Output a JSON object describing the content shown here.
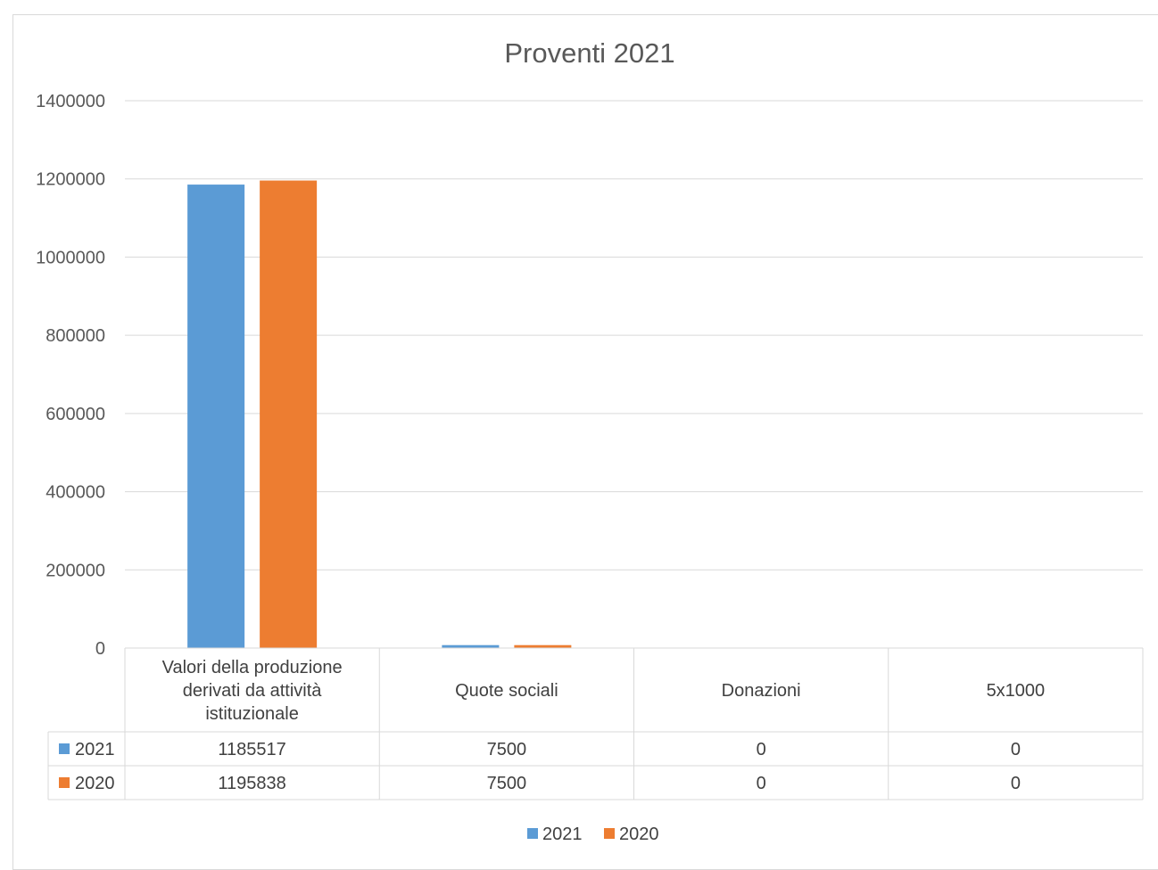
{
  "chart_data": {
    "type": "bar",
    "title": "Proventi  2021",
    "xlabel": "",
    "ylabel": "",
    "ylim": [
      0,
      1400000
    ],
    "yticks": [
      "0",
      "200000",
      "400000",
      "600000",
      "800000",
      "1000000",
      "1200000",
      "1400000"
    ],
    "grid": true,
    "legend_position": "bottom",
    "categories": [
      [
        "Valori della produzione",
        "derivati da attività",
        "istituzionale"
      ],
      [
        "Quote sociali"
      ],
      [
        "Donazioni"
      ],
      [
        "5x1000"
      ]
    ],
    "series": [
      {
        "name": "2021",
        "color": "#5b9bd5",
        "values": [
          1185517,
          7500,
          0,
          0
        ]
      },
      {
        "name": "2020",
        "color": "#ed7d31",
        "values": [
          1195838,
          7500,
          0,
          0
        ]
      }
    ],
    "data_table": true
  }
}
